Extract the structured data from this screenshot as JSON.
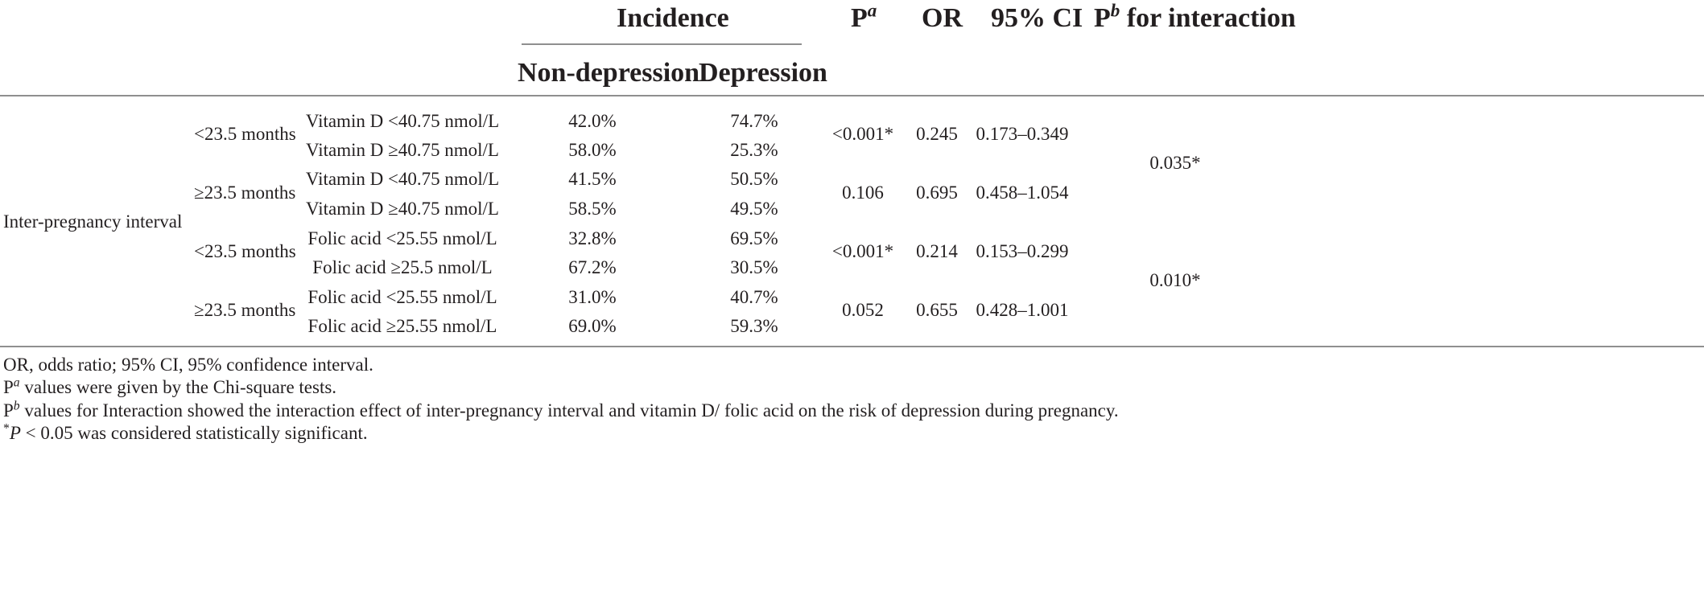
{
  "header": {
    "incidence": "Incidence",
    "non_depression": "Non-depression",
    "depression": "Depression",
    "p_letter": "P",
    "p_sup": "a",
    "or": "OR",
    "ci": "95% CI",
    "pb_letter": "P",
    "pb_sup": "b",
    "pb_rest": " for interaction"
  },
  "row_group": "Inter-pregnancy interval",
  "rows": [
    {
      "interval": "<23.5 months",
      "factor": "Vitamin D <40.75 nmol/L",
      "non_dep": "42.0%",
      "dep": "74.7%"
    },
    {
      "interval": "",
      "factor": "Vitamin D ≥40.75 nmol/L",
      "non_dep": "58.0%",
      "dep": "25.3%"
    },
    {
      "interval": "≥23.5 months",
      "factor": "Vitamin D <40.75 nmol/L",
      "non_dep": "41.5%",
      "dep": "50.5%"
    },
    {
      "interval": "",
      "factor": "Vitamin D ≥40.75 nmol/L",
      "non_dep": "58.5%",
      "dep": "49.5%"
    },
    {
      "interval": "<23.5 months",
      "factor": "Folic acid <25.55 nmol/L",
      "non_dep": "32.8%",
      "dep": "69.5%"
    },
    {
      "interval": "",
      "factor": "Folic acid ≥25.5 nmol/L",
      "non_dep": "67.2%",
      "dep": "30.5%"
    },
    {
      "interval": "≥23.5 months",
      "factor": "Folic acid <25.55 nmol/L",
      "non_dep": "31.0%",
      "dep": "40.7%"
    },
    {
      "interval": "",
      "factor": "Folic acid ≥25.55 nmol/L",
      "non_dep": "69.0%",
      "dep": "59.3%"
    }
  ],
  "stats": [
    {
      "p": "<0.001*",
      "or": "0.245",
      "ci": "0.173–0.349"
    },
    {
      "p": "0.106",
      "or": "0.695",
      "ci": "0.458–1.054"
    },
    {
      "p": "<0.001*",
      "or": "0.214",
      "ci": "0.153–0.299"
    },
    {
      "p": "0.052",
      "or": "0.655",
      "ci": "0.428–1.001"
    }
  ],
  "interaction": [
    "0.035*",
    "0.010*"
  ],
  "footnotes": {
    "abbrev": "OR, odds ratio; 95% CI, 95% confidence interval.",
    "pa_letter": "P",
    "pa_sup": "a",
    "pa_text": " values were given by the Chi-square tests.",
    "pb_letter": "P",
    "pb_sup": "b",
    "pb_text": " values for Interaction showed the interaction effect of inter-pregnancy interval and vitamin D/ folic acid on the risk of depression during pregnancy.",
    "sig_star": "*",
    "sig_p": "P",
    "sig_text": " < 0.05 was considered statistically significant."
  }
}
